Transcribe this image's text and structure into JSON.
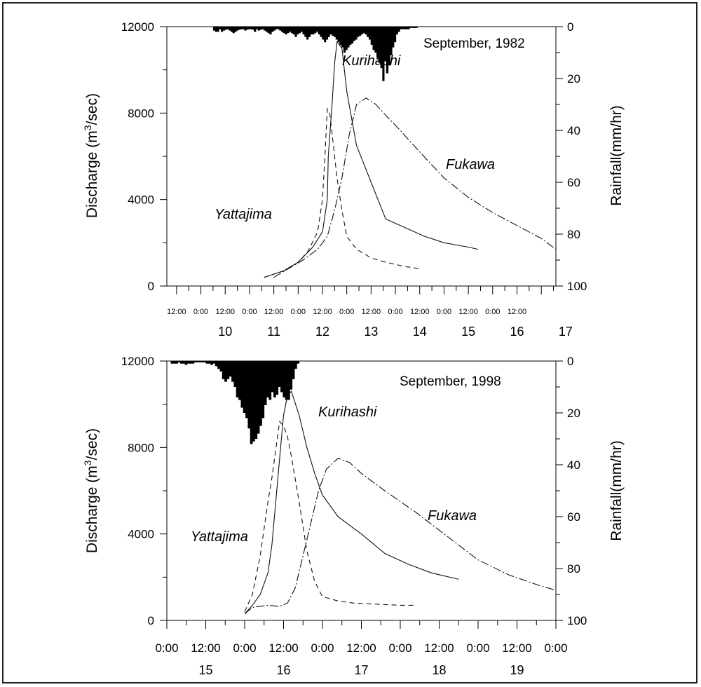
{
  "chart_data": [
    {
      "type": "line",
      "title": "September, 1982",
      "ylabel_main": "Discharge (m",
      "ylabel_sup": "3",
      "ylabel_tail": "/sec)",
      "y2label": "Rainfall(mm/hr)",
      "ylim": [
        0,
        12000
      ],
      "y2lim": [
        100,
        0
      ],
      "yticks": [
        "0",
        "4000",
        "8000",
        "12000"
      ],
      "y2ticks": [
        "0",
        "20",
        "40",
        "60",
        "80",
        "100"
      ],
      "xlim": [
        9.3,
        17.3
      ],
      "x_time_labels": [
        "12:00",
        "0:00",
        "12:00",
        "0:00",
        "12:00",
        "0:00",
        "12:00",
        "0:00",
        "12:00",
        "0:00",
        "12:00",
        "0:00",
        "12:00",
        "0:00",
        "12:00"
      ],
      "x_day_labels": [
        "10",
        "11",
        "12",
        "13",
        "14",
        "15",
        "16",
        "17"
      ],
      "annotations": [
        "Kurihashi",
        "Fukawa",
        "Yattajima"
      ],
      "series": [
        {
          "name": "Kurihashi",
          "style": "solid",
          "x": [
            11.3,
            11.7,
            12.0,
            12.3,
            12.5,
            12.6,
            12.62,
            12.7,
            12.75,
            12.8,
            12.9,
            13.0,
            13.2,
            13.5,
            13.8,
            14.2,
            14.6,
            15.0,
            15.5,
            15.7
          ],
          "y": [
            400,
            700,
            1100,
            1800,
            2500,
            4000,
            6000,
            8500,
            10300,
            11300,
            11000,
            9000,
            6500,
            4800,
            3100,
            2700,
            2300,
            2000,
            1800,
            1700
          ]
        },
        {
          "name": "Fukawa",
          "style": "dashdot",
          "x": [
            11.5,
            11.8,
            12.1,
            12.4,
            12.6,
            12.75,
            12.9,
            13.05,
            13.2,
            13.4,
            13.6,
            13.8,
            14.1,
            14.5,
            15.0,
            15.5,
            16.0,
            16.5,
            17.0,
            17.3
          ],
          "y": [
            400,
            800,
            1200,
            1700,
            2300,
            3500,
            5000,
            7000,
            8400,
            8700,
            8400,
            7900,
            7200,
            6200,
            5000,
            4100,
            3400,
            2800,
            2200,
            1700
          ]
        },
        {
          "name": "Yattajima",
          "style": "dashed",
          "x": [
            11.3,
            11.7,
            12.0,
            12.2,
            12.4,
            12.5,
            12.55,
            12.6,
            12.65,
            12.7,
            12.8,
            12.9,
            13.0,
            13.2,
            13.5,
            13.8,
            14.2,
            14.5
          ],
          "y": [
            400,
            700,
            1100,
            1600,
            2500,
            4000,
            6000,
            8200,
            8000,
            7000,
            5000,
            3500,
            2300,
            1700,
            1300,
            1100,
            900,
            800
          ]
        }
      ],
      "rainfall": {
        "x_start": 10.25,
        "step": 0.04,
        "values": [
          1.5,
          2,
          2,
          1,
          2,
          1.5,
          1.2,
          1,
          1.5,
          2,
          2.5,
          2,
          1.5,
          1.2,
          1,
          1,
          1.5,
          1.2,
          1,
          1,
          1.2,
          2,
          1,
          1.5,
          1.2,
          1,
          1.5,
          2,
          2.5,
          3,
          2,
          1.5,
          1,
          1,
          1.5,
          2,
          2.5,
          3,
          2.5,
          2,
          2.5,
          3,
          4,
          3,
          2.5,
          2,
          3,
          4,
          5,
          4,
          3,
          3,
          2.5,
          2,
          3,
          4,
          5,
          6,
          5,
          4,
          3,
          3.5,
          4,
          5,
          6,
          7,
          8,
          10,
          9,
          8,
          7,
          6.5,
          5.5,
          5,
          4,
          3.5,
          3,
          2.5,
          3,
          4,
          5,
          7,
          9,
          10,
          12,
          14,
          16,
          21,
          13,
          18,
          15,
          11,
          8,
          6,
          3,
          2,
          1,
          1,
          1,
          1,
          1,
          0.5,
          0.5,
          0.5,
          0.5
        ]
      }
    },
    {
      "type": "line",
      "title": "September, 1998",
      "ylabel_main": "Discharge (m",
      "ylabel_sup": "3",
      "ylabel_tail": "/sec)",
      "y2label": "Rainfall(mm/hr)",
      "ylim": [
        0,
        12000
      ],
      "y2lim": [
        100,
        0
      ],
      "yticks": [
        "0",
        "4000",
        "8000",
        "12000"
      ],
      "y2ticks": [
        "0",
        "20",
        "40",
        "60",
        "80",
        "100"
      ],
      "xlim": [
        15.0,
        20.0
      ],
      "x_time_labels": [
        "0:00",
        "12:00",
        "0:00",
        "12:00",
        "0:00",
        "12:00",
        "0:00",
        "12:00",
        "0:00",
        "12:00",
        "0:00"
      ],
      "x_day_labels": [
        "15",
        "16",
        "17",
        "18",
        "19"
      ],
      "annotations": [
        "Kurihashi",
        "Fukawa",
        "Yattajima"
      ],
      "series": [
        {
          "name": "Kurihashi",
          "style": "solid",
          "x": [
            16.0,
            16.1,
            16.2,
            16.3,
            16.35,
            16.4,
            16.45,
            16.5,
            16.55,
            16.6,
            16.7,
            16.8,
            16.9,
            17.0,
            17.2,
            17.5,
            17.8,
            18.1,
            18.4,
            18.75
          ],
          "y": [
            300,
            700,
            1200,
            2200,
            3500,
            5500,
            7500,
            9500,
            10400,
            10600,
            9500,
            8000,
            6800,
            5800,
            4800,
            4000,
            3100,
            2600,
            2200,
            1900
          ]
        },
        {
          "name": "Fukawa",
          "style": "dashdot",
          "x": [
            16.0,
            16.1,
            16.3,
            16.45,
            16.55,
            16.65,
            16.75,
            16.85,
            16.95,
            17.05,
            17.2,
            17.35,
            17.5,
            17.8,
            18.2,
            18.6,
            19.0,
            19.4,
            19.8,
            20.0
          ],
          "y": [
            300,
            600,
            700,
            650,
            800,
            1500,
            3000,
            4500,
            6000,
            7000,
            7500,
            7300,
            6800,
            6000,
            5000,
            3900,
            2800,
            2100,
            1600,
            1400
          ]
        },
        {
          "name": "Yattajima",
          "style": "dashed",
          "x": [
            16.0,
            16.1,
            16.2,
            16.3,
            16.35,
            16.45,
            16.5,
            16.55,
            16.6,
            16.7,
            16.8,
            16.9,
            17.0,
            17.2,
            17.4,
            17.7,
            18.0,
            18.2
          ],
          "y": [
            400,
            1200,
            3000,
            5500,
            6600,
            9200,
            9000,
            8500,
            7600,
            5500,
            3200,
            1800,
            1100,
            900,
            800,
            750,
            700,
            700
          ]
        }
      ],
      "rainfall": {
        "x_start": 15.05,
        "step": 0.03,
        "values": [
          1,
          1,
          1,
          0.5,
          1,
          1,
          1.5,
          1,
          1,
          1,
          0.5,
          0.5,
          0.5,
          0.5,
          0.5,
          1,
          1,
          1.5,
          1,
          2,
          3,
          4,
          7,
          8,
          7,
          6,
          8,
          10,
          14,
          15,
          18,
          20,
          22,
          26,
          32,
          31,
          30,
          28,
          25,
          22,
          17,
          14,
          15,
          12,
          14,
          13,
          10,
          12,
          14,
          15,
          15,
          11,
          7,
          3,
          1
        ]
      }
    }
  ]
}
